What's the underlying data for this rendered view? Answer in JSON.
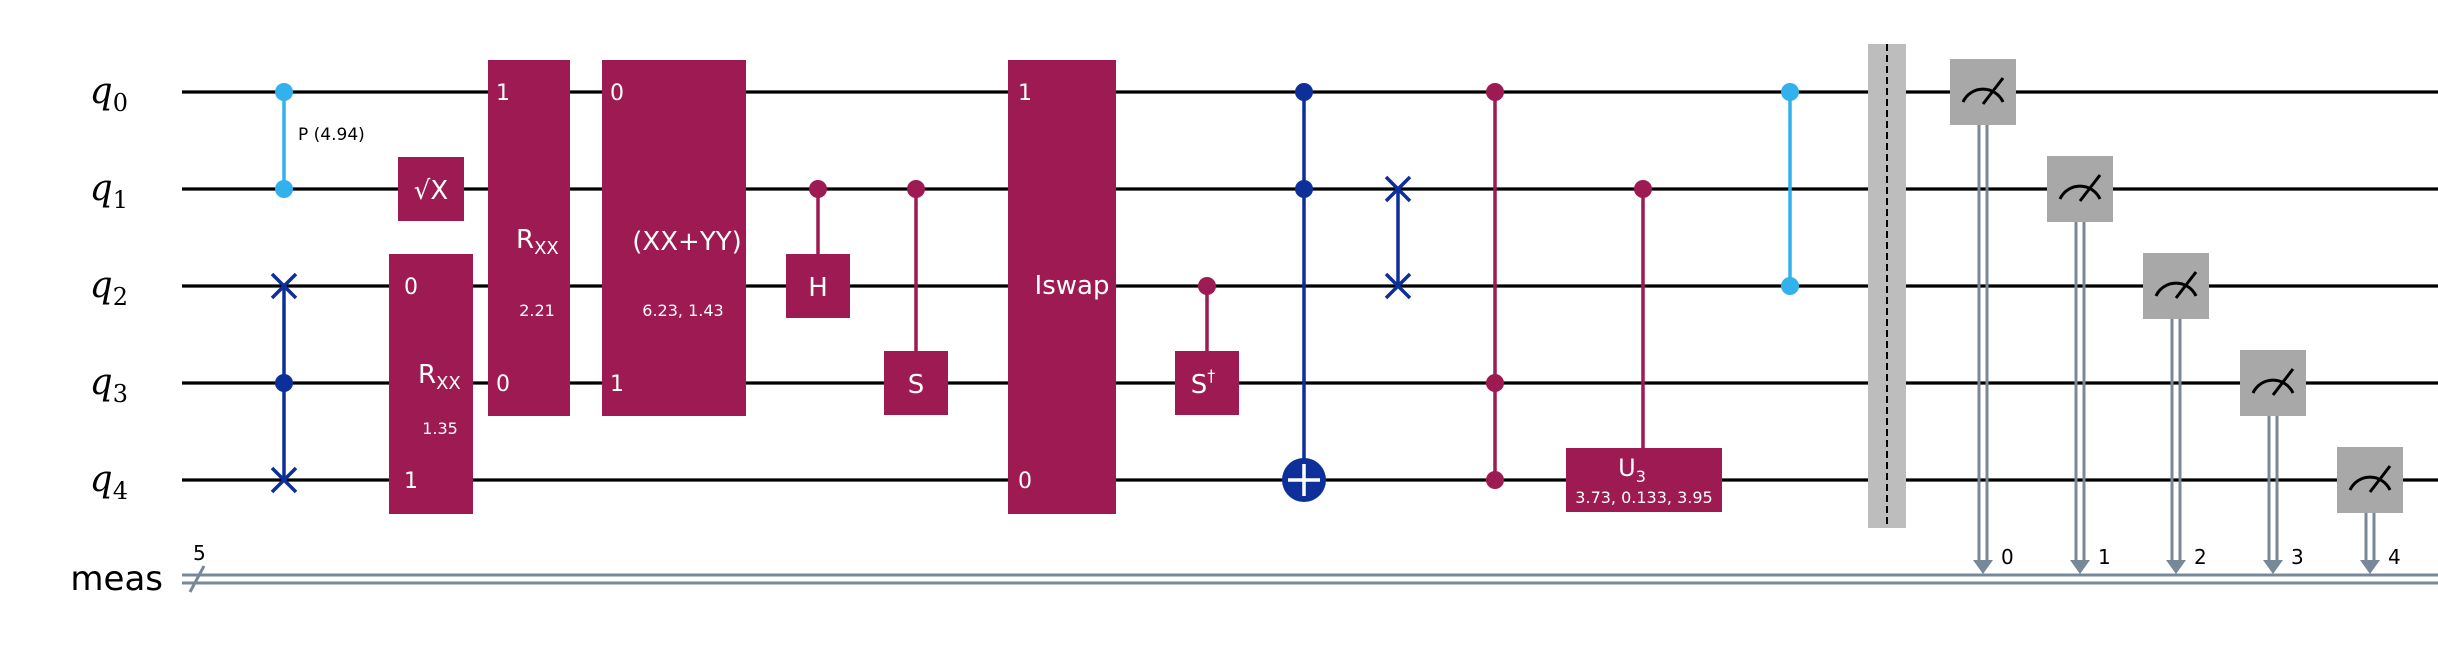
{
  "colors": {
    "gate": "#9e1a52",
    "control_dark": "#0d2f9a",
    "control_light": "#33b1ec",
    "classical": "#778899",
    "measure_box": "#a8a8a8",
    "barrier": "#bdbdbd"
  },
  "wires": {
    "qubit_labels": [
      {
        "base": "q",
        "sub": "0"
      },
      {
        "base": "q",
        "sub": "1"
      },
      {
        "base": "q",
        "sub": "2"
      },
      {
        "base": "q",
        "sub": "3"
      },
      {
        "base": "q",
        "sub": "4"
      }
    ],
    "classical_label": "meas",
    "classical_width": "5"
  },
  "gates": {
    "p_label": "P (4.94)",
    "sqrt_x": "√X",
    "rxx1_name": "R",
    "rxx1_sub": "XX",
    "rxx1_param": "1.35",
    "rxx1_pin_a": "0",
    "rxx1_pin_b": "1",
    "rxx2_name": "R",
    "rxx2_sub": "XX",
    "rxx2_param": "2.21",
    "rxx2_pin_a": "1",
    "rxx2_pin_b": "0",
    "xxyy_name": "(XX+YY)",
    "xxyy_param": "6.23, 1.43",
    "xxyy_pin_a": "0",
    "xxyy_pin_b": "1",
    "h": "H",
    "s": "S",
    "iswap_name": "Iswap",
    "iswap_pin_a": "1",
    "iswap_pin_b": "0",
    "sdg": "S",
    "sdg_sup": "†",
    "u3_name": "U",
    "u3_sub": "3",
    "u3_param": "3.73, 0.133, 3.95"
  },
  "measurements": {
    "bit_labels": [
      "0",
      "1",
      "2",
      "3",
      "4"
    ]
  }
}
